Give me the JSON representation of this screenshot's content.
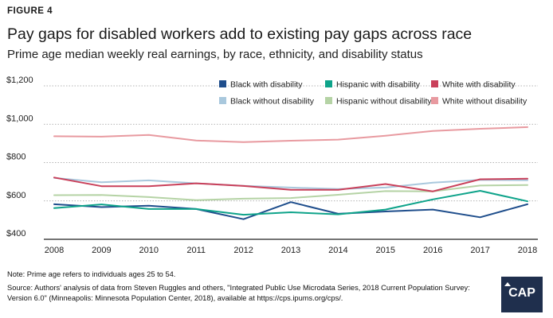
{
  "header": {
    "figure_label": "FIGURE 4",
    "title": "Pay gaps for disabled workers add to existing pay gaps across race",
    "subtitle": "Prime age median weekly real earnings, by race, ethnicity, and disability status"
  },
  "chart_data": {
    "type": "line",
    "x": [
      2008,
      2009,
      2010,
      2011,
      2012,
      2013,
      2014,
      2015,
      2016,
      2017,
      2018
    ],
    "y_ticks": [
      "$400",
      "$600",
      "$800",
      "$1,000",
      "$1,200"
    ],
    "ylim": [
      400,
      1200
    ],
    "grid": true,
    "legend_position": "top-right",
    "series": [
      {
        "name": "Black with disability",
        "color": "#1f4e8c",
        "values": [
          583,
          568,
          575,
          558,
          505,
          594,
          533,
          545,
          555,
          515,
          583
        ]
      },
      {
        "name": "Hispanic with disability",
        "color": "#0ea38a",
        "values": [
          563,
          582,
          558,
          558,
          528,
          541,
          530,
          555,
          608,
          653,
          598
        ]
      },
      {
        "name": "White with disability",
        "color": "#c9405a",
        "values": [
          722,
          677,
          677,
          692,
          678,
          658,
          658,
          688,
          650,
          713,
          716
        ]
      },
      {
        "name": "Black without disability",
        "color": "#a9c8dd",
        "values": [
          720,
          697,
          707,
          692,
          679,
          670,
          662,
          670,
          695,
          710,
          708
        ]
      },
      {
        "name": "Hispanic without disability",
        "color": "#b5d3a5",
        "values": [
          630,
          631,
          620,
          604,
          612,
          615,
          632,
          651,
          650,
          680,
          683
        ]
      },
      {
        "name": "White without disability",
        "color": "#e89aa0",
        "values": [
          937,
          935,
          944,
          915,
          907,
          914,
          920,
          940,
          965,
          976,
          985
        ]
      }
    ]
  },
  "footer": {
    "note": "Note: Prime age refers to individuals ages 25 to 54.",
    "source": "Source: Authors' analysis of data from Steven Ruggles and others, \"Integrated Public Use Microdata Series, 2018 Current Population Survey: Version 6.0\" (Minneapolis: Minnesota Population Center, 2018), available at https://cps.ipums.org/cps/.",
    "logo_text": "CAP"
  }
}
